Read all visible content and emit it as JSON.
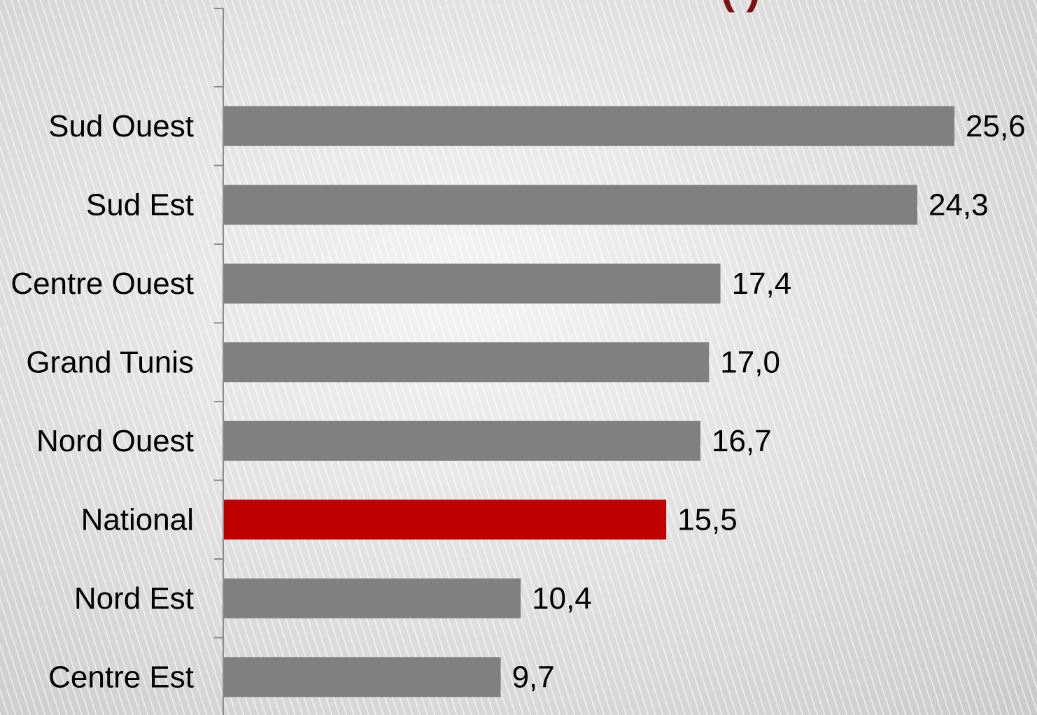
{
  "chart_data": {
    "type": "bar",
    "orientation": "horizontal",
    "title_fragment": "(   )",
    "categories": [
      "Sud Ouest",
      "Sud Est",
      "Centre Ouest",
      "Grand Tunis",
      "Nord Ouest",
      "National",
      "Nord Est",
      "Centre Est"
    ],
    "values": [
      25.6,
      24.3,
      17.4,
      17.0,
      16.7,
      15.5,
      10.4,
      9.7
    ],
    "value_labels": [
      "25,6",
      "24,3",
      "17,4",
      "17,0",
      "16,7",
      "15,5",
      "10,4",
      "9,7"
    ],
    "highlight_category": "National",
    "colors": {
      "bar": "#808080",
      "highlight": "#c00000",
      "axis": "#8c8c8c",
      "title": "#7a1010"
    },
    "xlim": [
      0,
      25.6
    ],
    "grid": false,
    "legend": "none"
  }
}
